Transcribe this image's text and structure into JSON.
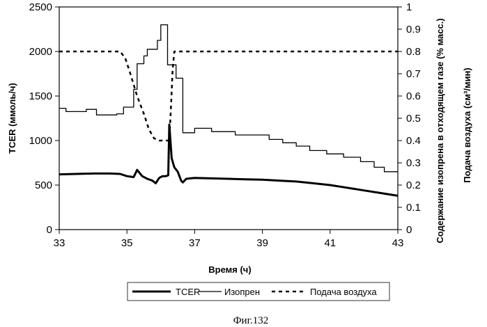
{
  "chart_data": {
    "type": "line",
    "xlabel": "Время (ч)",
    "ylabel_left": "TCER (ммоль/ч)",
    "ylabel_right_1": "Содержание изопрена в отходящем газе (% масс.)",
    "ylabel_right_2": "Подача воздуха (см³/мин)",
    "xlim": [
      33,
      43
    ],
    "ylim_left": [
      0,
      2500
    ],
    "ylim_right": [
      0,
      1
    ],
    "x_ticks": [
      "33",
      "35",
      "37",
      "39",
      "41",
      "43"
    ],
    "y_left_ticks": [
      "0",
      "500",
      "1000",
      "1500",
      "2000",
      "2500"
    ],
    "y_right_ticks": [
      "0",
      "0.1",
      "0.2",
      "0.3",
      "0.4",
      "0.5",
      "0.6",
      "0.7",
      "0.8",
      "0.9",
      "1"
    ],
    "grid": false,
    "legend_position": "bottom",
    "series": [
      {
        "name": "TCER",
        "axis": "left",
        "style": "thick-solid",
        "points": [
          [
            33.0,
            620
          ],
          [
            33.5,
            625
          ],
          [
            34.0,
            630
          ],
          [
            34.5,
            630
          ],
          [
            34.8,
            625
          ],
          [
            35.0,
            600
          ],
          [
            35.2,
            590
          ],
          [
            35.3,
            670
          ],
          [
            35.45,
            600
          ],
          [
            35.6,
            570
          ],
          [
            35.75,
            550
          ],
          [
            35.85,
            520
          ],
          [
            35.95,
            580
          ],
          [
            36.05,
            600
          ],
          [
            36.15,
            600
          ],
          [
            36.22,
            610
          ],
          [
            36.25,
            1180
          ],
          [
            36.32,
            800
          ],
          [
            36.4,
            700
          ],
          [
            36.5,
            650
          ],
          [
            36.6,
            550
          ],
          [
            36.65,
            530
          ],
          [
            36.75,
            570
          ],
          [
            37.0,
            580
          ],
          [
            37.5,
            575
          ],
          [
            38.0,
            570
          ],
          [
            38.5,
            565
          ],
          [
            39.0,
            560
          ],
          [
            39.5,
            550
          ],
          [
            40.0,
            540
          ],
          [
            40.5,
            520
          ],
          [
            41.0,
            500
          ],
          [
            41.5,
            470
          ],
          [
            42.0,
            440
          ],
          [
            42.5,
            410
          ],
          [
            43.0,
            380
          ]
        ]
      },
      {
        "name": "Изопрен",
        "axis": "right",
        "style": "thin-solid",
        "points": [
          [
            33.0,
            0.545
          ],
          [
            33.2,
            0.545
          ],
          [
            33.2,
            0.53
          ],
          [
            33.8,
            0.53
          ],
          [
            33.8,
            0.54
          ],
          [
            34.1,
            0.54
          ],
          [
            34.1,
            0.515
          ],
          [
            34.7,
            0.515
          ],
          [
            34.7,
            0.52
          ],
          [
            34.9,
            0.52
          ],
          [
            34.9,
            0.55
          ],
          [
            35.2,
            0.55
          ],
          [
            35.2,
            0.63
          ],
          [
            35.3,
            0.63
          ],
          [
            35.3,
            0.745
          ],
          [
            35.5,
            0.745
          ],
          [
            35.5,
            0.78
          ],
          [
            35.6,
            0.78
          ],
          [
            35.6,
            0.81
          ],
          [
            35.9,
            0.81
          ],
          [
            35.9,
            0.85
          ],
          [
            36.0,
            0.85
          ],
          [
            36.0,
            0.92
          ],
          [
            36.2,
            0.92
          ],
          [
            36.2,
            0.74
          ],
          [
            36.45,
            0.74
          ],
          [
            36.45,
            0.68
          ],
          [
            36.65,
            0.68
          ],
          [
            36.65,
            0.435
          ],
          [
            37.0,
            0.435
          ],
          [
            37.0,
            0.455
          ],
          [
            37.5,
            0.455
          ],
          [
            37.5,
            0.44
          ],
          [
            38.2,
            0.44
          ],
          [
            38.2,
            0.425
          ],
          [
            39.2,
            0.425
          ],
          [
            39.2,
            0.405
          ],
          [
            39.6,
            0.405
          ],
          [
            39.6,
            0.39
          ],
          [
            40.0,
            0.39
          ],
          [
            40.0,
            0.375
          ],
          [
            40.4,
            0.375
          ],
          [
            40.4,
            0.355
          ],
          [
            40.9,
            0.355
          ],
          [
            40.9,
            0.34
          ],
          [
            41.4,
            0.34
          ],
          [
            41.4,
            0.325
          ],
          [
            41.9,
            0.325
          ],
          [
            41.9,
            0.305
          ],
          [
            42.3,
            0.305
          ],
          [
            42.3,
            0.28
          ],
          [
            42.6,
            0.28
          ],
          [
            42.6,
            0.26
          ],
          [
            43.0,
            0.26
          ]
        ]
      },
      {
        "name": "Подача воздуха",
        "axis": "right",
        "style": "dashed",
        "points": [
          [
            33.0,
            0.8
          ],
          [
            34.8,
            0.8
          ],
          [
            34.95,
            0.77
          ],
          [
            35.1,
            0.7
          ],
          [
            35.3,
            0.6
          ],
          [
            35.5,
            0.52
          ],
          [
            35.65,
            0.45
          ],
          [
            35.8,
            0.41
          ],
          [
            35.95,
            0.4
          ],
          [
            36.25,
            0.4
          ],
          [
            36.3,
            0.55
          ],
          [
            36.35,
            0.72
          ],
          [
            36.4,
            0.8
          ],
          [
            43.0,
            0.8
          ]
        ]
      }
    ]
  },
  "legend": {
    "items": [
      {
        "label": "TCER"
      },
      {
        "label": "Изопрен"
      },
      {
        "label": "Подача воздуха"
      }
    ]
  },
  "caption": "Фиг.132"
}
